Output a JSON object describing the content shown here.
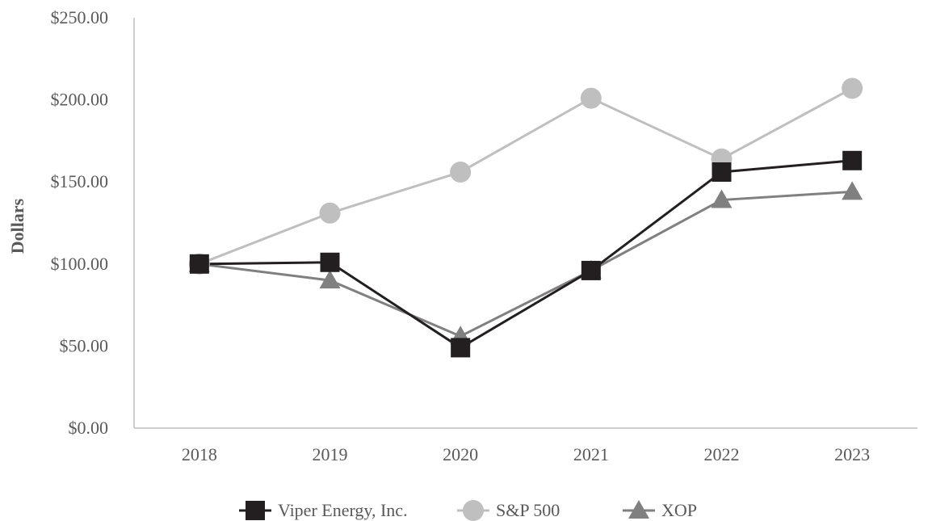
{
  "chart_data": {
    "type": "line",
    "title": "",
    "xlabel": "",
    "ylabel": "Dollars",
    "categories": [
      "2018",
      "2019",
      "2020",
      "2021",
      "2022",
      "2023"
    ],
    "ylim": [
      0,
      250
    ],
    "yticks": [
      0,
      50,
      100,
      150,
      200,
      250
    ],
    "ytick_labels": [
      "$0.00",
      "$50.00",
      "$100.00",
      "$150.00",
      "$200.00",
      "$250.00"
    ],
    "grid": false,
    "legend_position": "bottom",
    "series": [
      {
        "name": "Viper Energy, Inc.",
        "values": [
          100,
          101,
          49,
          96,
          156,
          163
        ],
        "color": "#231f20",
        "marker": "square"
      },
      {
        "name": "S&P 500",
        "values": [
          100,
          131,
          156,
          201,
          164,
          207
        ],
        "color": "#bfbfbf",
        "marker": "circle"
      },
      {
        "name": "XOP",
        "values": [
          100,
          90,
          56,
          96,
          139,
          144
        ],
        "color": "#808080",
        "marker": "triangle"
      }
    ]
  }
}
